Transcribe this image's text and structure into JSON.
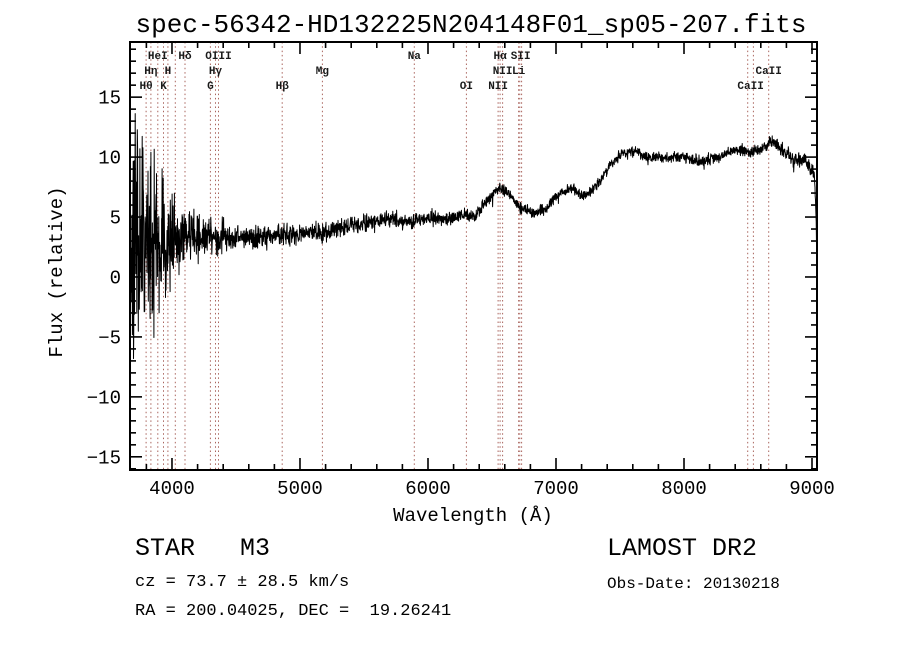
{
  "chart_data": {
    "type": "line",
    "title": "spec-56342-HD132225N204148F01_sp05-207.fits",
    "xlabel": "Wavelength (Å)",
    "ylabel": "Flux (relative)",
    "xlim": [
      3672,
      9039
    ],
    "ylim": [
      -16.1,
      19.6
    ],
    "xticks": [
      4000,
      5000,
      6000,
      7000,
      8000,
      9000
    ],
    "yticks": [
      -15,
      -10,
      -5,
      0,
      5,
      10,
      15
    ],
    "x_minor_step": 200,
    "y_minor_step": 1,
    "grid": false,
    "legend": "none",
    "line_color": "#000000",
    "marker_line_color": "#9b4a42",
    "series": [
      {
        "name": "spectrum",
        "sample_step": 2,
        "seed": 20130218,
        "continuum": [
          [
            3675,
            2.2
          ],
          [
            3800,
            2.6
          ],
          [
            3900,
            3.0
          ],
          [
            4000,
            3.2
          ],
          [
            4150,
            3.3
          ],
          [
            4300,
            3.4
          ],
          [
            4450,
            3.3
          ],
          [
            4600,
            3.2
          ],
          [
            4800,
            3.4
          ],
          [
            5000,
            3.6
          ],
          [
            5100,
            3.8
          ],
          [
            5180,
            3.6
          ],
          [
            5300,
            4.1
          ],
          [
            5500,
            4.5
          ],
          [
            5700,
            4.8
          ],
          [
            5890,
            4.6
          ],
          [
            6000,
            5.0
          ],
          [
            6150,
            4.7
          ],
          [
            6270,
            5.2
          ],
          [
            6360,
            4.9
          ],
          [
            6460,
            6.4
          ],
          [
            6560,
            7.4
          ],
          [
            6640,
            6.9
          ],
          [
            6720,
            5.7
          ],
          [
            6820,
            5.3
          ],
          [
            6920,
            5.7
          ],
          [
            7020,
            6.9
          ],
          [
            7120,
            7.4
          ],
          [
            7220,
            6.7
          ],
          [
            7320,
            7.7
          ],
          [
            7420,
            9.3
          ],
          [
            7520,
            10.3
          ],
          [
            7620,
            10.5
          ],
          [
            7720,
            9.9
          ],
          [
            7870,
            10.0
          ],
          [
            8020,
            10.0
          ],
          [
            8120,
            9.6
          ],
          [
            8270,
            10.0
          ],
          [
            8420,
            10.6
          ],
          [
            8520,
            10.4
          ],
          [
            8620,
            10.8
          ],
          [
            8700,
            11.3
          ],
          [
            8780,
            10.5
          ],
          [
            8870,
            9.7
          ],
          [
            8950,
            9.9
          ],
          [
            9000,
            8.9
          ],
          [
            9020,
            8.5
          ],
          [
            9032,
            5.0
          ],
          [
            9039,
            0.6
          ]
        ],
        "noise_amplitude": [
          [
            3675,
            9.5
          ],
          [
            3760,
            9.0
          ],
          [
            3820,
            7.5
          ],
          [
            3880,
            6.0
          ],
          [
            3940,
            5.0
          ],
          [
            4000,
            3.6
          ],
          [
            4060,
            2.6
          ],
          [
            4120,
            2.2
          ],
          [
            4220,
            1.7
          ],
          [
            4320,
            1.3
          ],
          [
            4520,
            1.0
          ],
          [
            4820,
            0.9
          ],
          [
            5220,
            0.75
          ],
          [
            5720,
            0.6
          ],
          [
            6220,
            0.5
          ],
          [
            6720,
            0.45
          ],
          [
            7220,
            0.4
          ],
          [
            7720,
            0.4
          ],
          [
            8220,
            0.45
          ],
          [
            8720,
            0.5
          ],
          [
            9000,
            0.65
          ],
          [
            9039,
            0.8
          ]
        ],
        "spikes": [
          [
            4576,
            -4.5
          ],
          [
            4578,
            -9.2
          ],
          [
            4580,
            -3.0
          ]
        ]
      }
    ],
    "spectral_lines": {
      "wavelengths": [
        3798,
        3835,
        3889,
        3934,
        3968,
        4026,
        4102,
        4300,
        4340,
        4363,
        4861,
        5175,
        5893,
        6300,
        6548,
        6563,
        6583,
        6708,
        6717,
        6731,
        8498,
        8542,
        8662
      ],
      "labels": [
        {
          "text": "HeI",
          "wavelength": 3889,
          "row": 1
        },
        {
          "text": "Hδ",
          "wavelength": 4102,
          "row": 1
        },
        {
          "text": "OIII",
          "wavelength": 4363,
          "row": 1
        },
        {
          "text": "Na",
          "wavelength": 5893,
          "row": 1
        },
        {
          "text": "Hα",
          "wavelength": 6563,
          "row": 1
        },
        {
          "text": "SII",
          "wavelength": 6724,
          "row": 1
        },
        {
          "text": "Hη",
          "wavelength": 3835,
          "row": 2
        },
        {
          "text": "H",
          "wavelength": 3968,
          "row": 2
        },
        {
          "text": "Hγ",
          "wavelength": 4340,
          "row": 2
        },
        {
          "text": "Mg",
          "wavelength": 5175,
          "row": 2
        },
        {
          "text": "NII",
          "wavelength": 6583,
          "row": 2
        },
        {
          "text": "Li",
          "wavelength": 6708,
          "row": 2
        },
        {
          "text": "CaII",
          "wavelength": 8662,
          "row": 2
        },
        {
          "text": "Hθ",
          "wavelength": 3798,
          "row": 3
        },
        {
          "text": "K",
          "wavelength": 3934,
          "row": 3
        },
        {
          "text": "G",
          "wavelength": 4300,
          "row": 3
        },
        {
          "text": "Hβ",
          "wavelength": 4861,
          "row": 3
        },
        {
          "text": "OI",
          "wavelength": 6300,
          "row": 3
        },
        {
          "text": "NII",
          "wavelength": 6548,
          "row": 3
        },
        {
          "text": "CaII",
          "wavelength": 8520,
          "row": 3
        }
      ]
    }
  },
  "annotations": {
    "class_line": "STAR   M3",
    "survey": "LAMOST DR2",
    "cz_line": "cz = 73.7 ± 28.5 km/s",
    "obs_date": "Obs-Date: 20130218",
    "radec_line": "RA = 200.04025, DEC =  19.26241"
  }
}
